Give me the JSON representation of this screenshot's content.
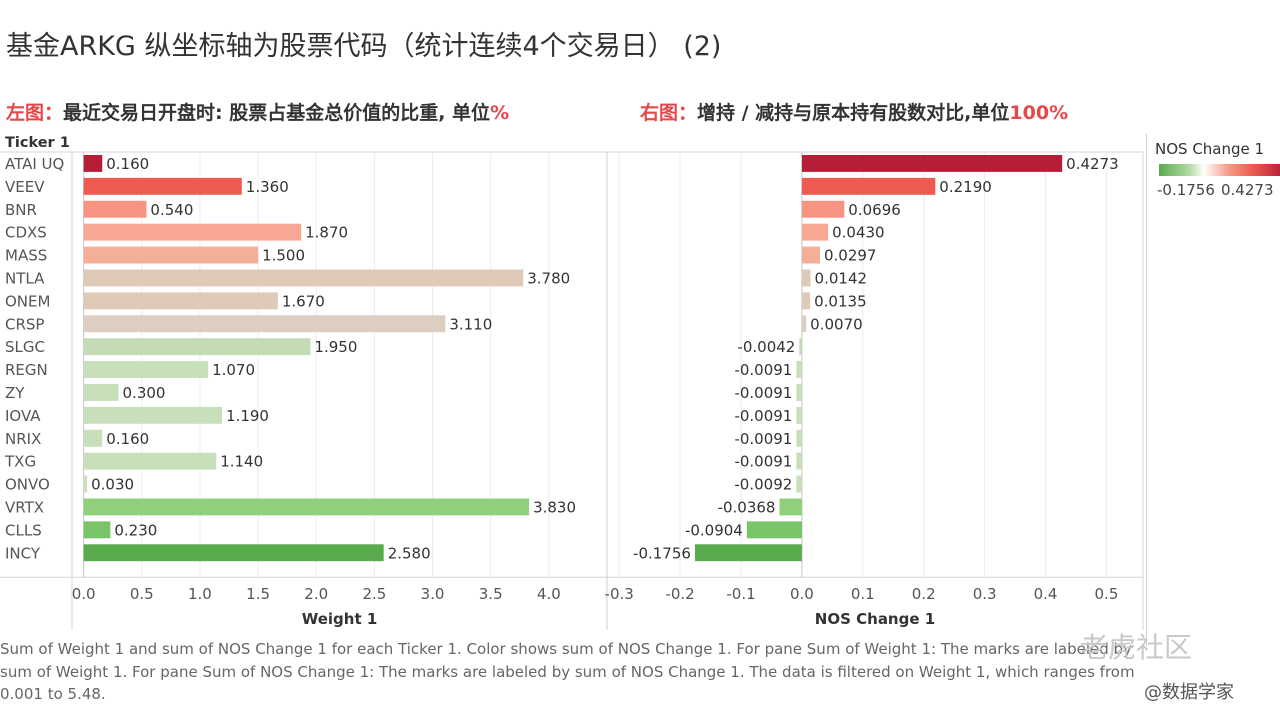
{
  "title": "基金ARKG  纵坐标轴为股票代码（统计连续4个交易日） (2)",
  "subtitle_left": {
    "label": "左图：",
    "text": "最近交易日开盘时: 股票占基金总价值的比重, 单位",
    "unit": "%"
  },
  "subtitle_right": {
    "label": "右图：",
    "text": "增持 / 减持与原本持有股数对比,单位",
    "unit": "100%"
  },
  "chart_data": {
    "type": "bar",
    "orientation": "horizontal",
    "row_header": "Ticker 1",
    "categories": [
      "ATAI UQ",
      "VEEV",
      "BNR",
      "CDXS",
      "MASS",
      "NTLA",
      "ONEM",
      "CRSP",
      "SLGC",
      "REGN",
      "ZY",
      "IOVA",
      "NRIX",
      "TXG",
      "ONVO",
      "VRTX",
      "CLLS",
      "INCY"
    ],
    "series": [
      {
        "name": "Weight 1",
        "values": [
          0.16,
          1.36,
          0.54,
          1.87,
          1.5,
          3.78,
          1.67,
          3.11,
          1.95,
          1.07,
          0.3,
          1.19,
          0.16,
          1.14,
          0.03,
          3.83,
          0.23,
          2.58
        ],
        "labels": [
          "0.160",
          "1.360",
          "0.540",
          "1.870",
          "1.500",
          "3.780",
          "1.670",
          "3.110",
          "1.950",
          "1.070",
          "0.300",
          "1.190",
          "0.160",
          "1.140",
          "0.030",
          "3.830",
          "0.230",
          "2.580"
        ],
        "xlim": [
          -0.1,
          4.5
        ],
        "ticks": [
          0.0,
          0.5,
          1.0,
          1.5,
          2.0,
          2.5,
          3.0,
          3.5,
          4.0
        ],
        "tick_labels": [
          "0.0",
          "0.5",
          "1.0",
          "1.5",
          "2.0",
          "2.5",
          "3.0",
          "3.5",
          "4.0"
        ],
        "xlabel": "Weight 1"
      },
      {
        "name": "NOS Change 1",
        "values": [
          0.4273,
          0.219,
          0.0696,
          0.043,
          0.0297,
          0.0142,
          0.0135,
          0.007,
          -0.0042,
          -0.0091,
          -0.0091,
          -0.0091,
          -0.0091,
          -0.0091,
          -0.0092,
          -0.0368,
          -0.0904,
          -0.1756
        ],
        "labels": [
          "0.4273",
          "0.2190",
          "0.0696",
          "0.0430",
          "0.0297",
          "0.0142",
          "0.0135",
          "0.0070",
          "-0.0042",
          "-0.0091",
          "-0.0091",
          "-0.0091",
          "-0.0091",
          "-0.0091",
          "-0.0092",
          "-0.0368",
          "-0.0904",
          "-0.1756"
        ],
        "xlim": [
          -0.32,
          0.56
        ],
        "ticks": [
          -0.3,
          -0.2,
          -0.1,
          0.0,
          0.1,
          0.2,
          0.3,
          0.4,
          0.5
        ],
        "tick_labels": [
          "-0.3",
          "-0.2",
          "-0.1",
          "0.0",
          "0.1",
          "0.2",
          "0.3",
          "0.4",
          "0.5"
        ],
        "xlabel": "NOS Change 1"
      }
    ],
    "bar_colors": [
      "#b81d38",
      "#ee5a50",
      "#f69481",
      "#f7a794",
      "#f5af99",
      "#dfcab8",
      "#dfcab8",
      "#dccec0",
      "#c3dcb7",
      "#c7dfba",
      "#c7dfba",
      "#c7dfba",
      "#c7dfba",
      "#c7dfba",
      "#c9e0bc",
      "#8ed07b",
      "#79c468",
      "#5aab4e"
    ],
    "grid": true
  },
  "legend": {
    "title": "NOS Change 1",
    "min_label": "-0.1756",
    "max_label": "0.4273"
  },
  "caption": "Sum of Weight 1 and sum of NOS Change 1 for each Ticker 1.  Color shows sum of NOS Change 1.  For pane Sum of Weight 1:  The marks are labeled by sum of Weight 1.  For pane Sum of NOS Change 1:  The marks are labeled by sum of NOS Change 1. The data is filtered on Weight 1, which ranges from 0.001 to 5.48.",
  "watermark": {
    "brand": "老虎社区",
    "author": "@数据学家"
  }
}
